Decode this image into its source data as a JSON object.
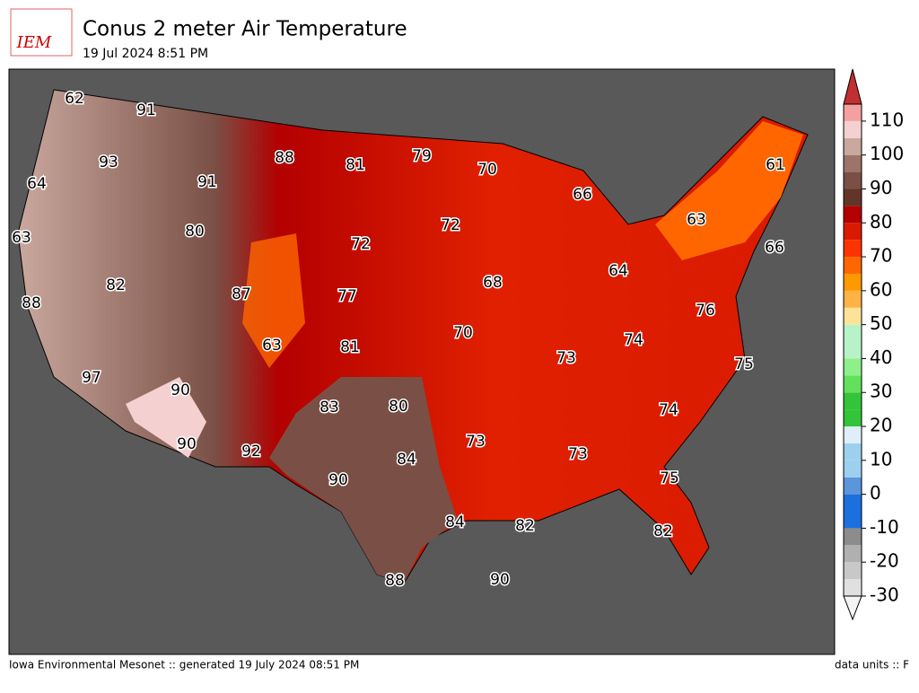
{
  "header": {
    "title": "Conus 2 meter Air Temperature",
    "subtitle": "19 Jul 2024 8:51 PM",
    "logo": "IEM"
  },
  "map": {
    "labels": [
      62,
      91,
      93,
      88,
      81,
      79,
      70,
      61,
      64,
      91,
      66,
      63,
      80,
      72,
      72,
      66,
      63,
      82,
      64,
      68,
      87,
      77,
      88,
      76,
      70,
      74,
      81,
      63,
      73,
      75,
      97,
      90,
      83,
      80,
      74,
      73,
      90,
      92,
      73,
      84,
      90,
      75,
      84,
      82,
      82,
      88,
      90
    ]
  },
  "colorbar": {
    "lim": [
      -30,
      115
    ],
    "ticks": [
      -30,
      -20,
      -10,
      0,
      10,
      20,
      30,
      40,
      50,
      60,
      70,
      80,
      90,
      100,
      110
    ],
    "colors": [
      "#e0e0e0",
      "#c8c8c8",
      "#b0b0b0",
      "#8c8c8c",
      "#1c6fde",
      "#1c6fde",
      "#5b95db",
      "#9dd0ef",
      "#9dd0ef",
      "#dfeef8",
      "#33c43a",
      "#33c43a",
      "#62e05a",
      "#8ef08a",
      "#b8f2c8",
      "#b8f2c8",
      "#fde39a",
      "#ffb347",
      "#ff9900",
      "#ff6600",
      "#ff3300",
      "#d91a00",
      "#b30000",
      "#633528",
      "#7a5046",
      "#9c7468",
      "#c9a89e",
      "#f5d0d0",
      "#f5a0a0"
    ]
  },
  "footer": {
    "left": "Iowa Environmental Mesonet :: generated 19 July 2024 08:51 PM",
    "right": "data units :: F"
  }
}
